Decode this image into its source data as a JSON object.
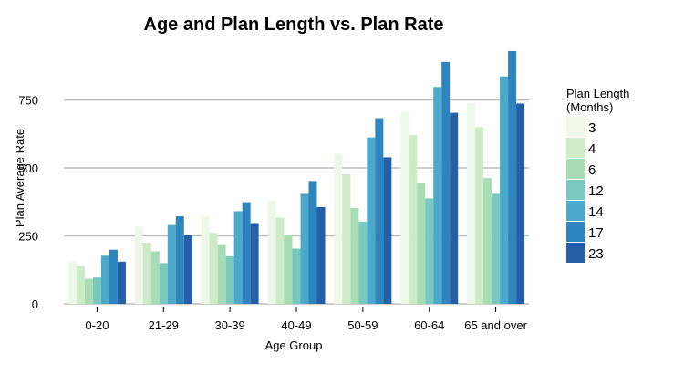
{
  "chart_data": {
    "type": "bar",
    "title": "Age and Plan Length vs. Plan Rate",
    "xlabel": "Age Group",
    "ylabel": "Plan Average Rate",
    "ylim": [
      0,
      950
    ],
    "yticks": [
      0,
      250,
      500,
      750
    ],
    "grid": true,
    "legend_title": [
      "Plan Length",
      "(Months)"
    ],
    "legend_position": "right",
    "categories": [
      "0-20",
      "21-29",
      "30-39",
      "40-49",
      "50-59",
      "60-64",
      "65 and over"
    ],
    "series": [
      {
        "name": "3",
        "color": "#eef8e8",
        "values": [
          155,
          283,
          323,
          380,
          553,
          707,
          738
        ]
      },
      {
        "name": "4",
        "color": "#cdebc6",
        "values": [
          139,
          225,
          261,
          317,
          477,
          621,
          650
        ]
      },
      {
        "name": "6",
        "color": "#a7dcb5",
        "values": [
          92,
          193,
          219,
          254,
          353,
          446,
          463
        ]
      },
      {
        "name": "12",
        "color": "#79c9c0",
        "values": [
          97,
          150,
          175,
          203,
          302,
          388,
          405
        ]
      },
      {
        "name": "14",
        "color": "#4ba9cc",
        "values": [
          177,
          290,
          341,
          405,
          612,
          798,
          837
        ]
      },
      {
        "name": "17",
        "color": "#2e84bc",
        "values": [
          199,
          322,
          374,
          452,
          683,
          890,
          930
        ]
      },
      {
        "name": "23",
        "color": "#255fa7",
        "values": [
          155,
          252,
          297,
          356,
          539,
          703,
          737
        ]
      }
    ]
  }
}
